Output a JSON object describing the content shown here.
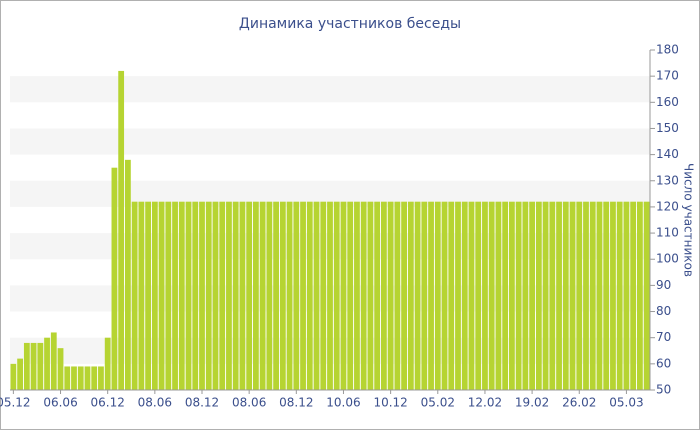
{
  "chart_data": {
    "type": "bar",
    "title": "Динамика участников беседы",
    "y_label": "Число участников",
    "categories": [
      "05.12",
      null,
      null,
      null,
      null,
      null,
      null,
      "06.06",
      null,
      null,
      null,
      null,
      null,
      null,
      "06.12",
      null,
      null,
      null,
      null,
      null,
      null,
      "08.06",
      null,
      null,
      null,
      null,
      null,
      null,
      "08.12",
      null,
      null,
      null,
      null,
      null,
      null,
      "08.06",
      null,
      null,
      null,
      null,
      null,
      null,
      "08.12",
      null,
      null,
      null,
      null,
      null,
      null,
      "10.06",
      null,
      null,
      null,
      null,
      null,
      null,
      "10.12",
      null,
      null,
      null,
      null,
      null,
      null,
      "05.02",
      null,
      null,
      null,
      null,
      null,
      null,
      "12.02",
      null,
      null,
      null,
      null,
      null,
      null,
      "19.02",
      null,
      null,
      null,
      null,
      null,
      null,
      "26.02",
      null,
      null,
      null,
      null,
      null,
      null,
      "05.03",
      null,
      null,
      null
    ],
    "values": [
      60,
      62,
      68,
      68,
      68,
      70,
      72,
      66,
      59,
      59,
      59,
      59,
      59,
      59,
      70,
      135,
      172,
      138,
      122,
      122,
      122,
      122,
      122,
      122,
      122,
      122,
      122,
      122,
      122,
      122,
      122,
      122,
      122,
      122,
      122,
      122,
      122,
      122,
      122,
      122,
      122,
      122,
      122,
      122,
      122,
      122,
      122,
      122,
      122,
      122,
      122,
      122,
      122,
      122,
      122,
      122,
      122,
      122,
      122,
      122,
      122,
      122,
      122,
      122,
      122,
      122,
      122,
      122,
      122,
      122,
      122,
      122,
      122,
      122,
      122,
      122,
      122,
      122,
      122,
      122,
      122,
      122,
      122,
      122,
      122,
      122,
      122,
      122,
      122,
      122,
      122,
      122,
      122,
      122,
      122
    ],
    "color": "#b6d432",
    "ylim": [
      50,
      180
    ],
    "yticks": [
      50,
      60,
      70,
      80,
      90,
      100,
      110,
      120,
      130,
      140,
      150,
      160,
      170,
      180
    ],
    "grid": "bands",
    "y_axis_side": "right"
  }
}
